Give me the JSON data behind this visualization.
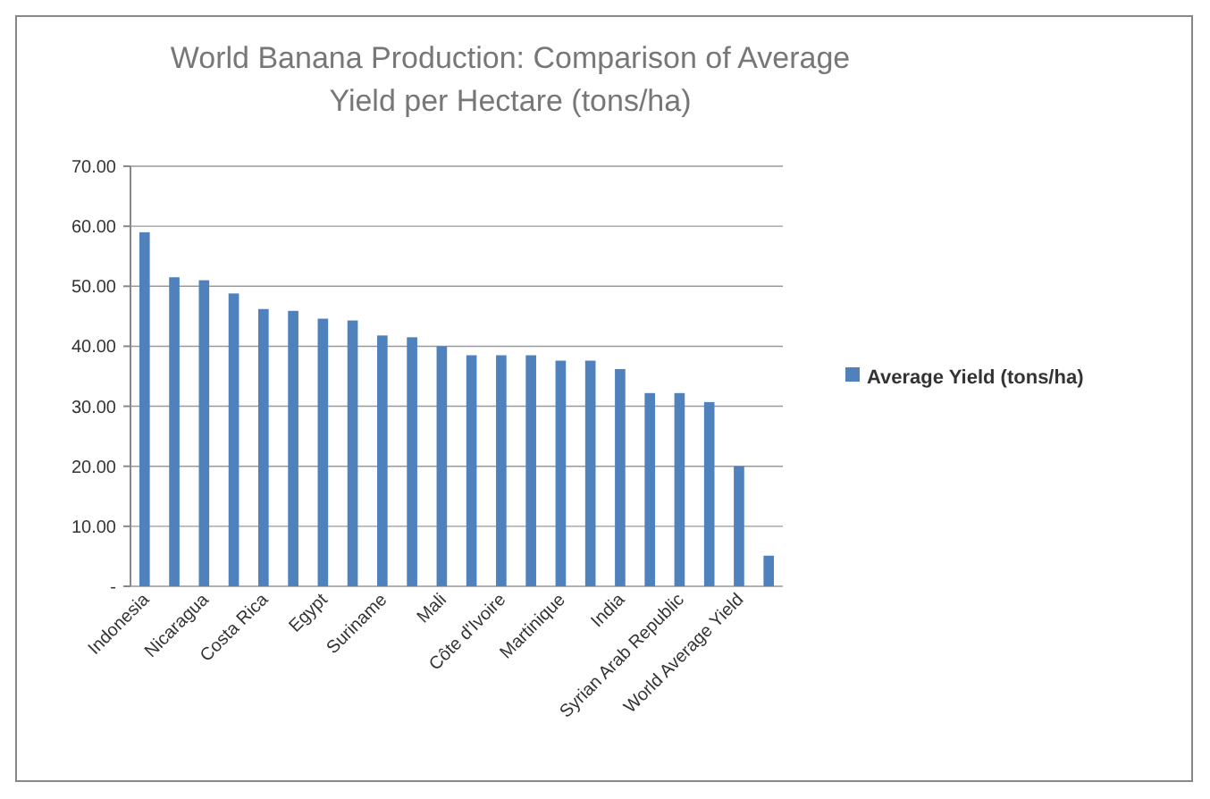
{
  "chart_data": {
    "type": "bar",
    "title": "World Banana Production: Comparison of Average Yield per Hectare (tons/ha)",
    "categories": [
      "Indonesia",
      null,
      "Nicaragua",
      null,
      "Costa Rica",
      null,
      "Egypt",
      null,
      "Suriname",
      null,
      "Mali",
      null,
      "Côte d'Ivoire",
      null,
      "Martinique",
      null,
      "India",
      null,
      "Syrian Arab Republic",
      null,
      "World Average Yield",
      null
    ],
    "series": [
      {
        "name": "Average Yield (tons/ha)",
        "color": "#4f81bd",
        "values": [
          59,
          51.5,
          51,
          48.8,
          46.2,
          45.9,
          44.6,
          44.3,
          41.8,
          41.5,
          40,
          38.5,
          38.5,
          38.5,
          37.6,
          37.6,
          36.2,
          32.2,
          32.2,
          30.7,
          20,
          5.1
        ]
      }
    ],
    "ylim": [
      0,
      70
    ],
    "yticks": [
      {
        "value": 0,
        "label": "-"
      },
      {
        "value": 10,
        "label": "10.00"
      },
      {
        "value": 20,
        "label": "20.00"
      },
      {
        "value": 30,
        "label": "30.00"
      },
      {
        "value": 40,
        "label": "40.00"
      },
      {
        "value": 50,
        "label": "50.00"
      },
      {
        "value": 60,
        "label": "60.00"
      },
      {
        "value": 70,
        "label": "70.00"
      }
    ],
    "grid": "y",
    "legend": "right"
  }
}
